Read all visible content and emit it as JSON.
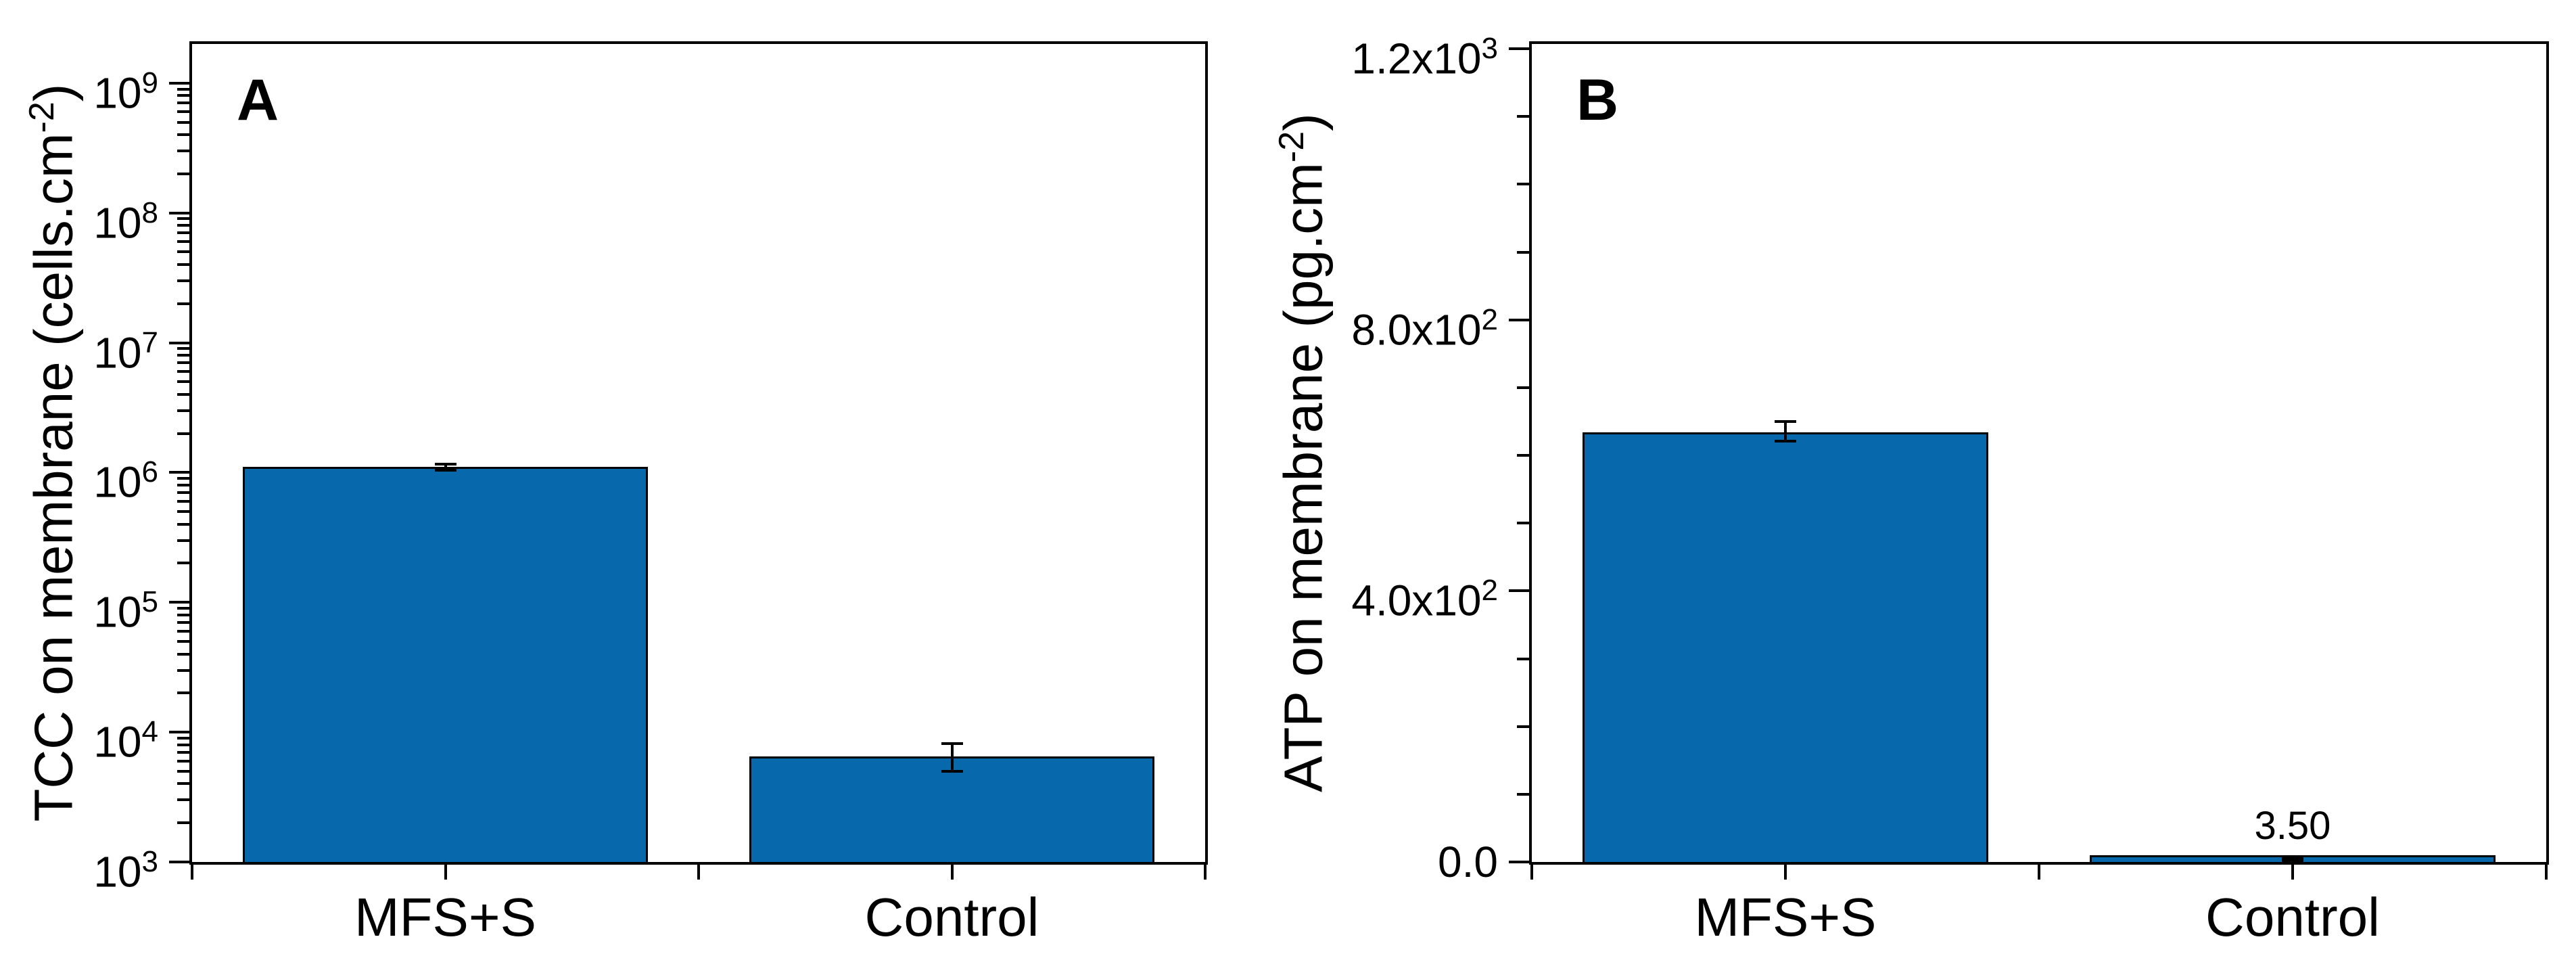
{
  "figure": {
    "background": "#ffffff",
    "axis_color": "#000000",
    "bar_fill": "#0768AB",
    "bar_border": "#000000",
    "text_color": "#000000"
  },
  "chart_data": [
    {
      "type": "bar",
      "panel_label": "A",
      "categories": [
        "MFS+S",
        "Control"
      ],
      "series": [
        {
          "name": "TCC",
          "values": [
            1100000,
            6500
          ],
          "errors_plus": [
            60000,
            1700
          ],
          "errors_minus": [
            60000,
            1500
          ]
        }
      ],
      "ylabel": {
        "pre": "TCC on membrane (cells.cm",
        "sup": "-2",
        "post": ")"
      },
      "y_axis": {
        "scale": "log",
        "min": 1000,
        "max": 2000000000,
        "major_ticks": [
          {
            "value": 1000,
            "mantissa": "10",
            "exp": "3"
          },
          {
            "value": 10000,
            "mantissa": "10",
            "exp": "4"
          },
          {
            "value": 100000,
            "mantissa": "10",
            "exp": "5"
          },
          {
            "value": 1000000,
            "mantissa": "10",
            "exp": "6"
          },
          {
            "value": 10000000,
            "mantissa": "10",
            "exp": "7"
          },
          {
            "value": 100000000,
            "mantissa": "10",
            "exp": "8"
          },
          {
            "value": 1000000000,
            "mantissa": "10",
            "exp": "9"
          }
        ]
      },
      "grid": false,
      "legend": null
    },
    {
      "type": "bar",
      "panel_label": "B",
      "categories": [
        "MFS+S",
        "Control"
      ],
      "series": [
        {
          "name": "ATP",
          "values": [
            634,
            3.5
          ],
          "errors_plus": [
            16,
            2
          ],
          "errors_minus": [
            13,
            2
          ]
        }
      ],
      "annotations": [
        {
          "category": "Control",
          "text": "3.50"
        }
      ],
      "ylabel": {
        "pre": "ATP on membrane (pg.cm",
        "sup": "-2",
        "post": ")"
      },
      "y_axis": {
        "scale": "linear",
        "min": 0,
        "max": 1207,
        "minor_step": 100,
        "major_ticks": [
          {
            "value": 0,
            "mantissa": "0.0",
            "exp": ""
          },
          {
            "value": 400,
            "mantissa": "4.0x10",
            "exp": "2"
          },
          {
            "value": 800,
            "mantissa": "8.0x10",
            "exp": "2"
          },
          {
            "value": 1200,
            "mantissa": "1.2x10",
            "exp": "3"
          }
        ]
      },
      "grid": false,
      "legend": null
    }
  ]
}
